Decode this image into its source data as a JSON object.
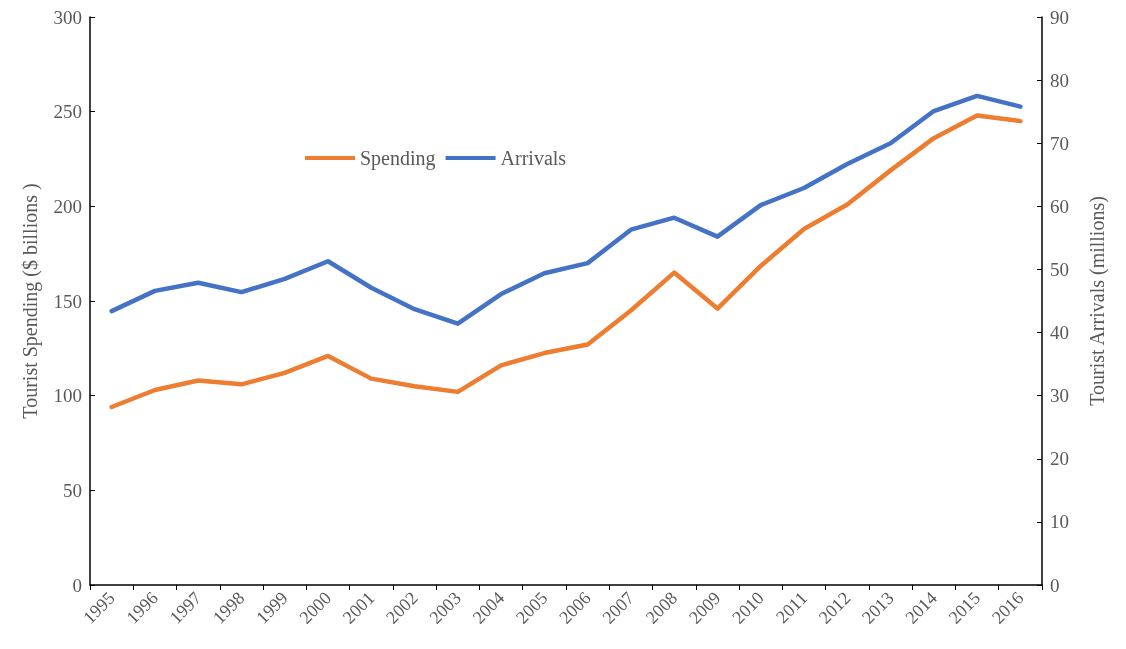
{
  "chart_data": {
    "type": "line",
    "ylabel": "Tourist Spending ($ billions )",
    "y2label": "Tourist Arrivals (millions)",
    "categories": [
      "1995",
      "1996",
      "1997",
      "1998",
      "1999",
      "2000",
      "2001",
      "2002",
      "2003",
      "2004",
      "2005",
      "2006",
      "2007",
      "2008",
      "2009",
      "2010",
      "2011",
      "2012",
      "2013",
      "2014",
      "2015",
      "2016"
    ],
    "series": [
      {
        "name": "Spending",
        "color": "#ed7d31",
        "values": [
          94,
          103,
          108,
          106,
          112,
          121,
          109,
          105,
          102,
          116,
          122.5,
          127,
          145,
          165,
          146,
          168.5,
          188,
          201,
          219,
          236,
          248,
          245
        ]
      },
      {
        "name": "Arrivals",
        "color": "#4472c4",
        "axis": "y2",
        "values": [
          43.4,
          46.6,
          47.9,
          46.4,
          48.5,
          51.3,
          47.1,
          43.7,
          41.4,
          46.1,
          49.4,
          51.0,
          56.3,
          58.2,
          55.2,
          60.2,
          62.9,
          66.7,
          70.0,
          75.1,
          77.5,
          75.8
        ]
      }
    ],
    "ylim": [
      0,
      300
    ],
    "yticks": [
      0,
      50,
      100,
      150,
      200,
      250,
      300
    ],
    "y2lim": [
      0,
      90
    ],
    "y2ticks": [
      0,
      10,
      20,
      30,
      40,
      50,
      60,
      70,
      80,
      90
    ],
    "grid": false,
    "legend": "top left",
    "marker": "none",
    "line_style": "solid"
  }
}
